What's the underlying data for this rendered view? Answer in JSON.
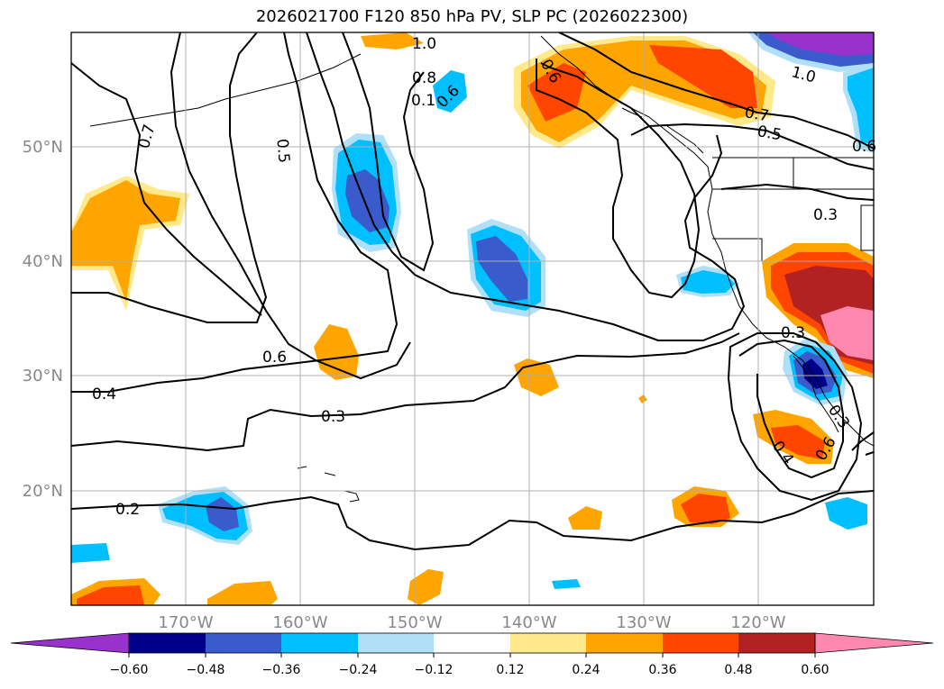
{
  "title": "2026021700 F120 850 hPa PV, SLP PC (2026022300)",
  "axes": {
    "lon_ticks": [
      "170°W",
      "160°W",
      "150°W",
      "140°W",
      "130°W",
      "120°W"
    ],
    "lat_ticks": [
      "50°N",
      "40°N",
      "30°N",
      "20°N"
    ],
    "grid": true
  },
  "colorbar": {
    "ticks": [
      "−0.60",
      "−0.48",
      "−0.36",
      "−0.24",
      "−0.12",
      "0.12",
      "0.24",
      "0.36",
      "0.48",
      "0.60"
    ],
    "colors": [
      "#9932cc",
      "#00008b",
      "#3a5bcc",
      "#00bfff",
      "#b0e0f8",
      "#ffffff",
      "#ffe98a",
      "#ffa500",
      "#ff4500",
      "#b22222",
      "#ff88b0"
    ],
    "extend": "both"
  },
  "contour_labels": [
    "1.0",
    "0.8",
    "0.1",
    "0.6",
    "0.6",
    "1.0",
    "0.7",
    "0.5",
    "0.7",
    "0.5",
    "0.6",
    "0.3",
    "0.6",
    "0.4",
    "0.3",
    "0.2",
    "0.3",
    "0.3",
    "0.6",
    "0.4"
  ]
}
